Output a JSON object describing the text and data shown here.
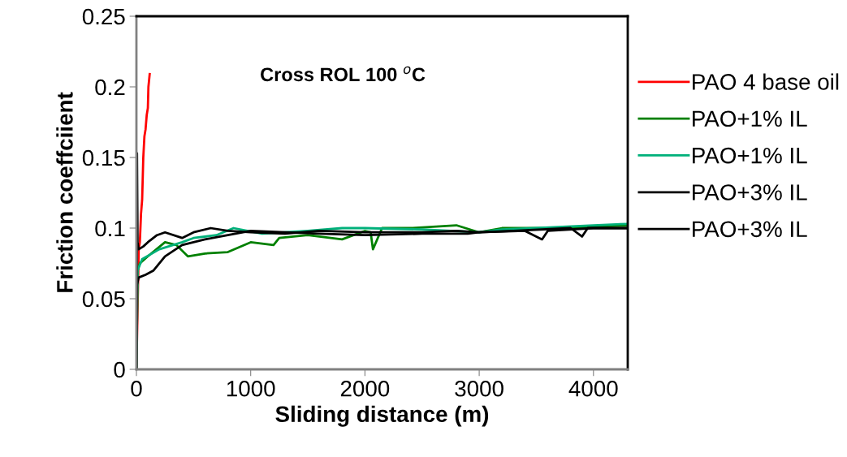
{
  "chart_data": {
    "type": "line",
    "title": "Cross ROL 100 $^{o}$C",
    "xlabel": "Sliding distance (m)",
    "ylabel": "Friction coeffciient",
    "xlim": [
      0,
      4300
    ],
    "ylim": [
      0,
      0.25
    ],
    "xticks": [
      0,
      1000,
      2000,
      3000,
      4000
    ],
    "yticks": [
      0,
      0.05,
      0.1,
      0.15,
      0.2,
      0.25
    ],
    "grid": false,
    "legend": "right",
    "marker": "none",
    "line_style": "solid",
    "series": [
      {
        "name": "PAO 4 base oil",
        "color": "#ff0000",
        "x": [
          0,
          20,
          30,
          40,
          50,
          60,
          70,
          80,
          90,
          100,
          105,
          116
        ],
        "values": [
          0,
          0.085,
          0.09,
          0.11,
          0.12,
          0.15,
          0.165,
          0.17,
          0.18,
          0.185,
          0.2,
          0.209
        ]
      },
      {
        "name": "PAO+1% IL",
        "color": "#008000",
        "x": [
          0,
          10,
          30,
          100,
          250,
          350,
          450,
          600,
          800,
          1000,
          1200,
          1250,
          1500,
          1800,
          2000,
          2050,
          2070,
          2150,
          2400,
          2800,
          3000,
          3200,
          3600,
          4000,
          4300
        ],
        "values": [
          0,
          0.07,
          0.075,
          0.08,
          0.09,
          0.088,
          0.08,
          0.082,
          0.083,
          0.09,
          0.088,
          0.093,
          0.095,
          0.092,
          0.098,
          0.097,
          0.085,
          0.1,
          0.1,
          0.102,
          0.097,
          0.1,
          0.1,
          0.101,
          0.102
        ]
      },
      {
        "name": "PAO+1% IL",
        "color": "#00b07a",
        "x": [
          0,
          10,
          50,
          200,
          400,
          500,
          700,
          850,
          1100,
          1500,
          1800,
          2000,
          2500,
          3000,
          3200,
          3500,
          4000,
          4300
        ],
        "values": [
          0,
          0.07,
          0.078,
          0.085,
          0.09,
          0.093,
          0.095,
          0.1,
          0.096,
          0.098,
          0.1,
          0.1,
          0.099,
          0.097,
          0.099,
          0.1,
          0.102,
          0.103
        ]
      },
      {
        "name": "PAO+3% IL",
        "color": "#000000",
        "x": [
          0,
          5,
          10,
          20,
          60,
          100,
          180,
          250,
          400,
          500,
          650,
          800,
          1000,
          1300,
          1600,
          2000,
          2500,
          2800,
          3000,
          3400,
          3550,
          3600,
          4000,
          4300
        ],
        "values": [
          0,
          0.153,
          0.09,
          0.085,
          0.087,
          0.09,
          0.095,
          0.097,
          0.093,
          0.097,
          0.1,
          0.098,
          0.097,
          0.096,
          0.098,
          0.097,
          0.097,
          0.098,
          0.097,
          0.098,
          0.092,
          0.098,
          0.1,
          0.1
        ]
      },
      {
        "name": "PAO+3% IL",
        "color": "#000000",
        "x": [
          0,
          5,
          20,
          80,
          150,
          250,
          400,
          600,
          800,
          1000,
          1300,
          1600,
          2000,
          2500,
          2900,
          3000,
          3300,
          3800,
          3900,
          3950,
          4300
        ],
        "values": [
          0,
          0.06,
          0.065,
          0.067,
          0.07,
          0.08,
          0.088,
          0.092,
          0.095,
          0.098,
          0.097,
          0.096,
          0.095,
          0.096,
          0.096,
          0.097,
          0.098,
          0.1,
          0.094,
          0.1,
          0.1
        ]
      }
    ]
  }
}
